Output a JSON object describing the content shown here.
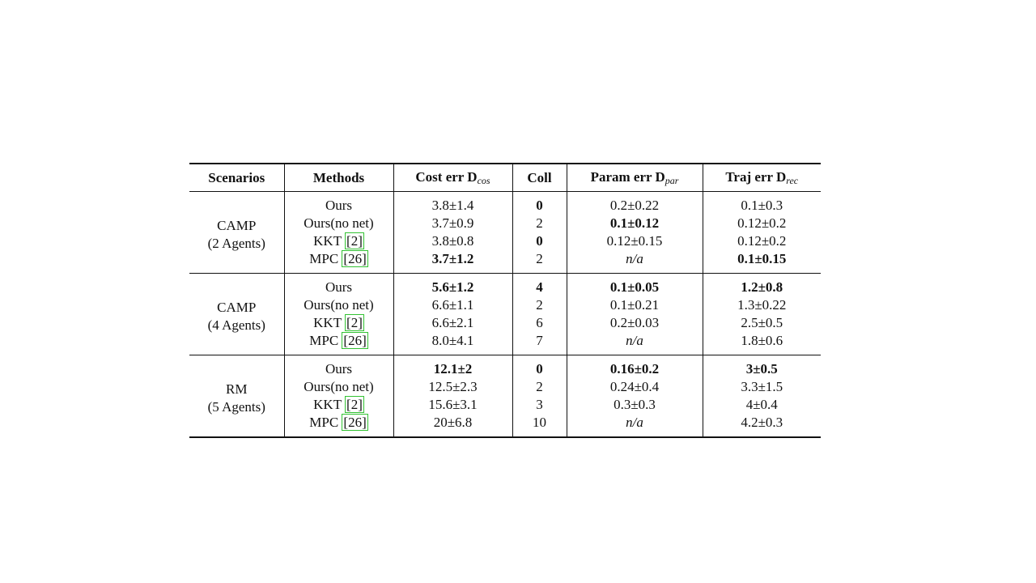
{
  "table": {
    "headers": {
      "scenarios": "Scenarios",
      "methods": "Methods",
      "cost": "Cost err D",
      "cost_sub": "cos",
      "coll": "Coll",
      "param": "Param err D",
      "param_sub": "par",
      "traj": "Traj err D",
      "traj_sub": "rec"
    },
    "groups": [
      {
        "scenario_line1": "CAMP",
        "scenario_line2": "(2 Agents)",
        "rows": [
          {
            "method": "Ours",
            "cite": "",
            "cost": "3.8±1.4",
            "coll": "0",
            "param": "0.2±0.22",
            "traj": "0.1±0.3"
          },
          {
            "method": "Ours(no net)",
            "cite": "",
            "cost": "3.7±0.9",
            "coll": "2",
            "param": "0.1±0.12",
            "traj": "0.12±0.2"
          },
          {
            "method": "KKT ",
            "cite": "[2]",
            "cost": "3.8±0.8",
            "coll": "0",
            "param": "0.12±0.15",
            "traj": "0.12±0.2"
          },
          {
            "method": "MPC ",
            "cite": "[26]",
            "cost": "3.7±1.2",
            "coll": "2",
            "param": "n/a",
            "traj": "0.1±0.15"
          }
        ]
      },
      {
        "scenario_line1": "CAMP",
        "scenario_line2": "(4 Agents)",
        "rows": [
          {
            "method": "Ours",
            "cite": "",
            "cost": "5.6±1.2",
            "coll": "4",
            "param": "0.1±0.05",
            "traj": "1.2±0.8"
          },
          {
            "method": "Ours(no net)",
            "cite": "",
            "cost": "6.6±1.1",
            "coll": "2",
            "param": "0.1±0.21",
            "traj": "1.3±0.22"
          },
          {
            "method": "KKT ",
            "cite": "[2]",
            "cost": "6.6±2.1",
            "coll": "6",
            "param": "0.2±0.03",
            "traj": "2.5±0.5"
          },
          {
            "method": "MPC ",
            "cite": "[26]",
            "cost": "8.0±4.1",
            "coll": "7",
            "param": "n/a",
            "traj": "1.8±0.6"
          }
        ]
      },
      {
        "scenario_line1": "RM",
        "scenario_line2": "(5 Agents)",
        "rows": [
          {
            "method": "Ours",
            "cite": "",
            "cost": "12.1±2",
            "coll": "0",
            "param": "0.16±0.2",
            "traj": "3±0.5"
          },
          {
            "method": "Ours(no net)",
            "cite": "",
            "cost": "12.5±2.3",
            "coll": "2",
            "param": "0.24±0.4",
            "traj": "3.3±1.5"
          },
          {
            "method": "KKT ",
            "cite": "[2]",
            "cost": "15.6±3.1",
            "coll": "3",
            "param": "0.3±0.3",
            "traj": "4±0.4"
          },
          {
            "method": "MPC ",
            "cite": "[26]",
            "cost": "20±6.8",
            "coll": "10",
            "param": "n/a",
            "traj": "4.2±0.3"
          }
        ]
      }
    ]
  }
}
